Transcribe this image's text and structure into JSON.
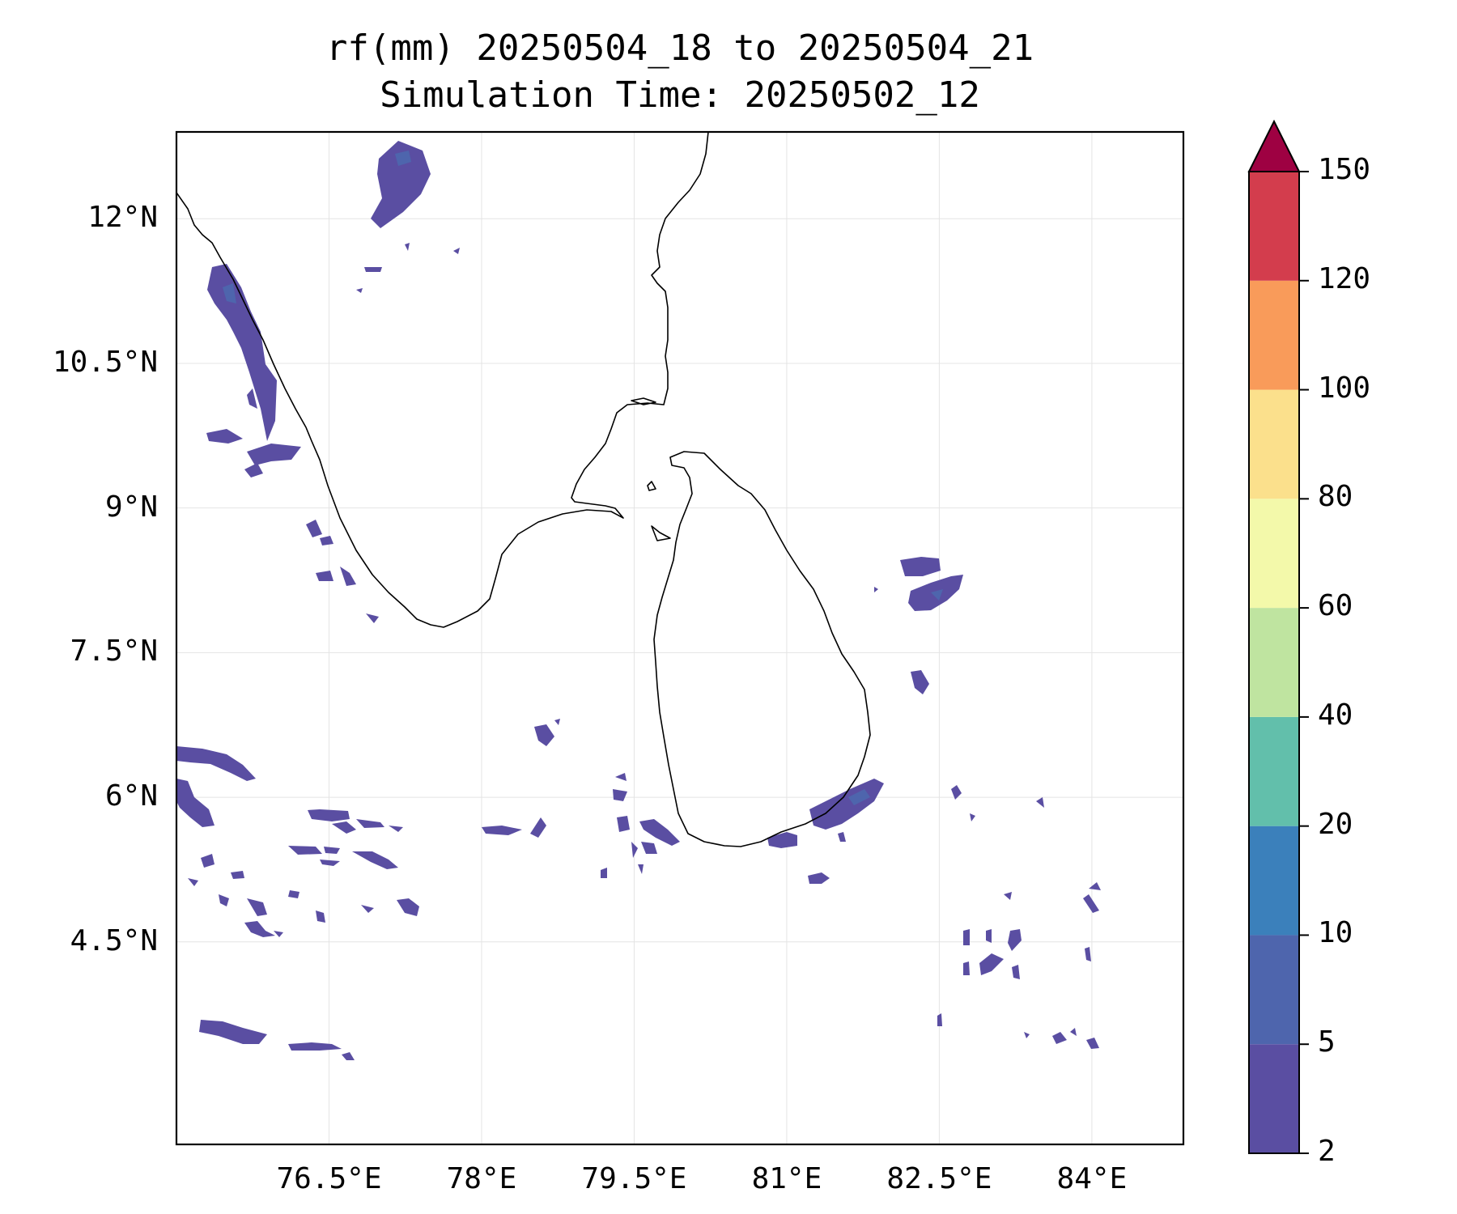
{
  "title_line_1": "rf(mm) 20250504_18 to 20250504_21",
  "title_line_2": "Simulation Time: 20250502_12",
  "map": {
    "lon_range": [
      75.0,
      84.9
    ],
    "lat_range": [
      2.4,
      12.9
    ],
    "lon_ticks": [
      76.5,
      78,
      79.5,
      81,
      82.5,
      84
    ],
    "lon_tick_labels": [
      "76.5°E",
      "78°E",
      "79.5°E",
      "81°E",
      "82.5°E",
      "84°E"
    ],
    "lat_ticks": [
      12,
      10.5,
      9,
      7.5,
      6,
      4.5
    ],
    "lat_tick_labels": [
      "12°N",
      "10.5°N",
      "9°N",
      "7.5°N",
      "6°N",
      "4.5°N"
    ],
    "gridlines": true,
    "coastline_color": "#000000"
  },
  "colorbar": {
    "levels": [
      2,
      5,
      10,
      20,
      40,
      60,
      80,
      100,
      120,
      150
    ],
    "level_labels": [
      "2",
      "5",
      "10",
      "20",
      "40",
      "60",
      "80",
      "100",
      "120",
      "150"
    ],
    "colors": [
      "#5a4ea2",
      "#4e65ad",
      "#3b80bb",
      "#62bfab",
      "#bfe4a0",
      "#f3f9aa",
      "#fbe08c",
      "#f99b5a",
      "#d33d4d"
    ],
    "extend_color": "#9e0142",
    "extend": "max"
  }
}
